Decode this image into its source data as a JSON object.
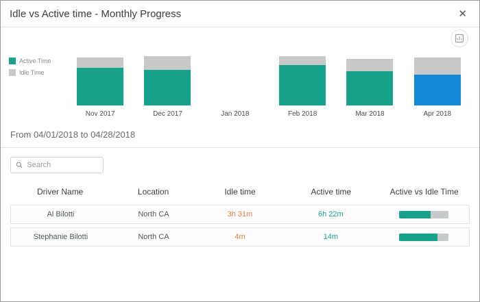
{
  "modal": {
    "title": "Idle vs Active time - Monthly Progress",
    "close_label": "✕"
  },
  "chart_data": {
    "type": "bar",
    "stacked": true,
    "categories": [
      "Nov 2017",
      "Dec 2017",
      "Jan 2018",
      "Feb 2018",
      "Mar 2018",
      "Apr 2018"
    ],
    "series": [
      {
        "name": "Active Time",
        "color": "#17a38b",
        "values": [
          55,
          52,
          0,
          59,
          50,
          45
        ]
      },
      {
        "name": "Idle Time",
        "color": "#c9c9c9",
        "values": [
          15,
          20,
          0,
          13,
          18,
          25
        ]
      }
    ],
    "highlight_index": 5,
    "highlight_color": "#1689d6",
    "legend_position": "left",
    "ylabel": "",
    "xlabel": ""
  },
  "date_range": "From 04/01/2018 to 04/28/2018",
  "search": {
    "placeholder": "Search"
  },
  "table": {
    "headers": [
      "Driver Name",
      "Location",
      "Idle time",
      "Active time",
      "Active vs Idle Time"
    ],
    "rows": [
      {
        "driver": "Al Bilotti",
        "location": "North CA",
        "idle": "3h 31m",
        "active": "6h 22m",
        "active_pct": 64
      },
      {
        "driver": "Stephanie Bilotti",
        "location": "North CA",
        "idle": "4m",
        "active": "14m",
        "active_pct": 78
      }
    ]
  }
}
